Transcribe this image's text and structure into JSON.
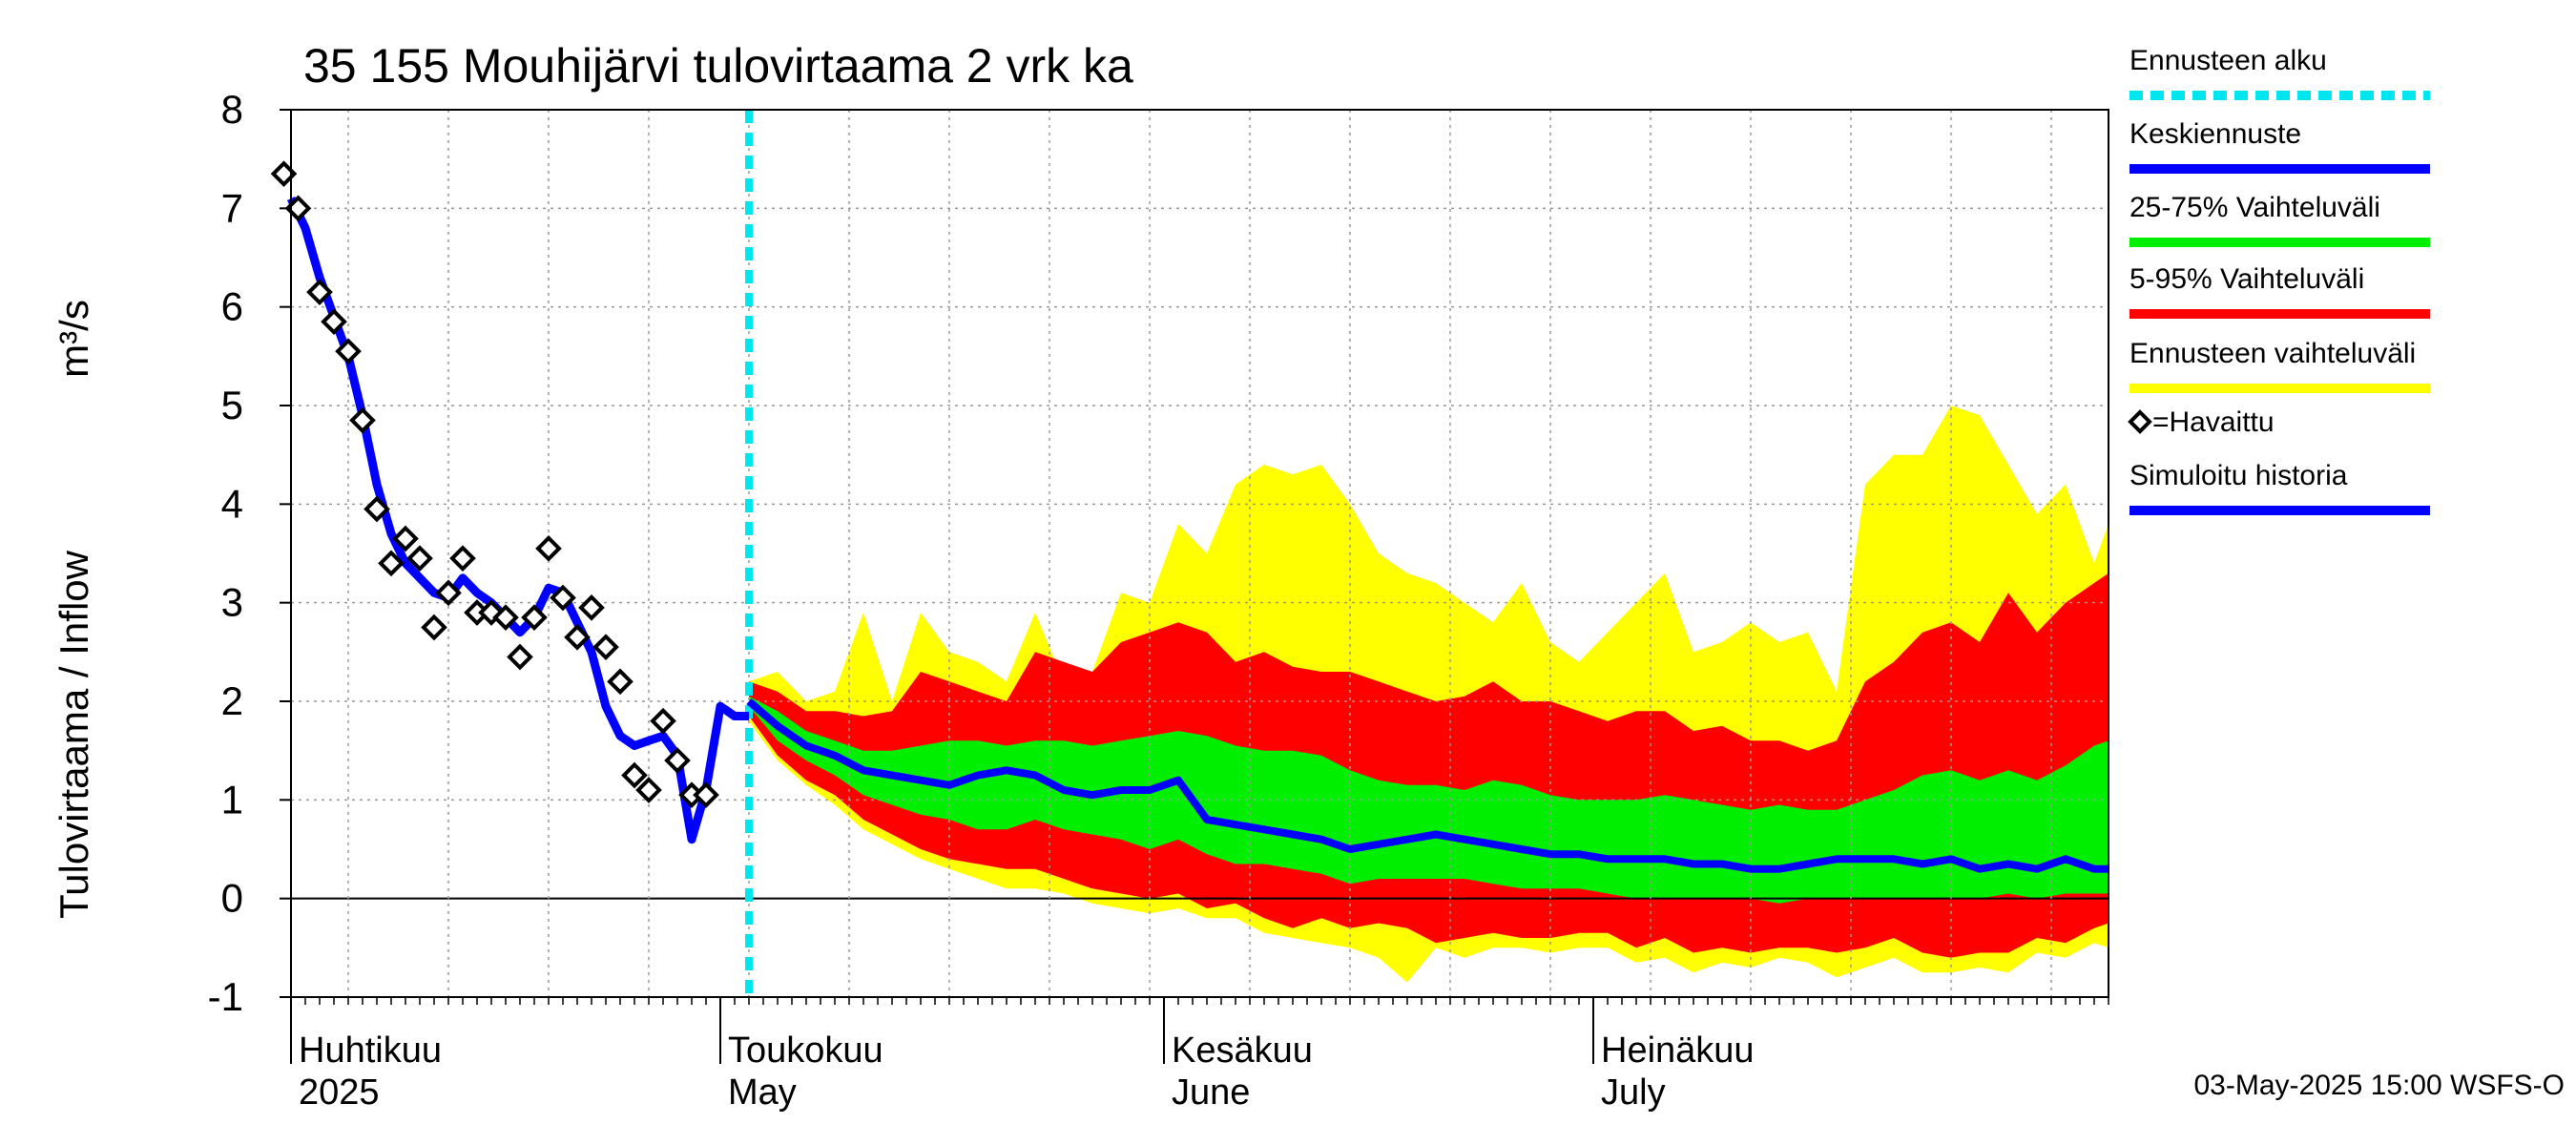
{
  "chart_data": {
    "type": "area",
    "title": "35 155 Mouhijärvi tulovirtaama 2 vrk ka",
    "ylabel_left": "Tulovirtaama / Inflow",
    "ylabel_unit": "m³/s",
    "ylim": [
      -1,
      8
    ],
    "yticks": [
      -1,
      0,
      1,
      2,
      3,
      4,
      5,
      6,
      7,
      8
    ],
    "x_start_day": 0,
    "x_end_day": 127,
    "forecast_start_day": 32,
    "month_labels": [
      {
        "day": 0,
        "fi": "Huhtikuu",
        "en": "2025"
      },
      {
        "day": 30,
        "fi": "Toukokuu",
        "en": "May"
      },
      {
        "day": 61,
        "fi": "Kesäkuu",
        "en": "June"
      },
      {
        "day": 91,
        "fi": "Heinäkuu",
        "en": "July"
      }
    ],
    "legend": [
      {
        "label": "Ennusteen alku",
        "color": "#00e5ee",
        "style": "dashed"
      },
      {
        "label": "Keskiennuste",
        "color": "#0000ff",
        "style": "line"
      },
      {
        "label": "25-75% Vaihteluväli",
        "color": "#00ee00",
        "style": "line"
      },
      {
        "label": "5-95% Vaihteluväli",
        "color": "#ff0000",
        "style": "line"
      },
      {
        "label": "Ennusteen vaihteluväli",
        "color": "#ffff00",
        "style": "line"
      },
      {
        "label": "=Havaittu",
        "color": "#000000",
        "style": "marker"
      },
      {
        "label": "Simuloitu historia",
        "color": "#0000ff",
        "style": "line"
      }
    ],
    "footer": "03-May-2025 15:00 WSFS-O",
    "colors": {
      "full_range": "#ffff00",
      "p5_95": "#ff0000",
      "p25_75": "#00ee00",
      "median": "#0000ff",
      "forecast_start": "#00e5ee",
      "grid": "#999999"
    },
    "observed": [
      [
        -0.5,
        7.35
      ],
      [
        0.5,
        7.0
      ],
      [
        2,
        6.15
      ],
      [
        3,
        5.85
      ],
      [
        4,
        5.55
      ],
      [
        5,
        4.85
      ],
      [
        6,
        3.95
      ],
      [
        7,
        3.4
      ],
      [
        8,
        3.65
      ],
      [
        9,
        3.45
      ],
      [
        10,
        2.75
      ],
      [
        11,
        3.1
      ],
      [
        12,
        3.45
      ],
      [
        13,
        2.9
      ],
      [
        14,
        2.9
      ],
      [
        15,
        2.85
      ],
      [
        16,
        2.45
      ],
      [
        17,
        2.85
      ],
      [
        18,
        3.55
      ],
      [
        19,
        3.05
      ],
      [
        20,
        2.65
      ],
      [
        21,
        2.95
      ],
      [
        22,
        2.55
      ],
      [
        23,
        2.2
      ],
      [
        24,
        1.25
      ],
      [
        25,
        1.1
      ],
      [
        26,
        1.8
      ],
      [
        27,
        1.4
      ],
      [
        28,
        1.05
      ],
      [
        29,
        1.05
      ]
    ],
    "simulated_history": [
      [
        0,
        7.1
      ],
      [
        1,
        6.8
      ],
      [
        2,
        6.3
      ],
      [
        3,
        5.9
      ],
      [
        4,
        5.5
      ],
      [
        5,
        4.9
      ],
      [
        6,
        4.2
      ],
      [
        7,
        3.7
      ],
      [
        8,
        3.4
      ],
      [
        9,
        3.25
      ],
      [
        10,
        3.1
      ],
      [
        11,
        3.05
      ],
      [
        12,
        3.25
      ],
      [
        13,
        3.1
      ],
      [
        14,
        3.0
      ],
      [
        15,
        2.85
      ],
      [
        16,
        2.7
      ],
      [
        17,
        2.85
      ],
      [
        18,
        3.15
      ],
      [
        19,
        3.1
      ],
      [
        20,
        2.8
      ],
      [
        21,
        2.5
      ],
      [
        22,
        1.95
      ],
      [
        23,
        1.65
      ],
      [
        24,
        1.55
      ],
      [
        25,
        1.6
      ],
      [
        26,
        1.65
      ],
      [
        27,
        1.45
      ],
      [
        28,
        0.6
      ],
      [
        29,
        1.1
      ],
      [
        30,
        1.95
      ],
      [
        31,
        1.85
      ],
      [
        32,
        1.85
      ]
    ],
    "forecast": {
      "days": [
        32,
        34,
        36,
        38,
        40,
        42,
        44,
        46,
        48,
        50,
        52,
        54,
        56,
        58,
        60,
        62,
        64,
        66,
        68,
        70,
        72,
        74,
        76,
        78,
        80,
        82,
        84,
        86,
        88,
        90,
        92,
        94,
        96,
        98,
        100,
        102,
        104,
        106,
        108,
        110,
        112,
        114,
        116,
        118,
        120,
        122,
        124,
        126,
        127
      ],
      "max": [
        2.2,
        2.3,
        2.0,
        2.1,
        2.9,
        2.0,
        2.9,
        2.5,
        2.4,
        2.2,
        2.9,
        2.2,
        2.3,
        3.1,
        3.0,
        3.8,
        3.5,
        4.2,
        4.4,
        4.3,
        4.4,
        4.0,
        3.5,
        3.3,
        3.2,
        3.0,
        2.8,
        3.2,
        2.6,
        2.4,
        2.7,
        3.0,
        3.3,
        2.5,
        2.6,
        2.8,
        2.6,
        2.7,
        2.1,
        4.2,
        4.5,
        4.5,
        5.0,
        4.9,
        4.4,
        3.9,
        4.2,
        3.4,
        3.8
      ],
      "p95": [
        2.2,
        2.1,
        1.9,
        1.9,
        1.85,
        1.9,
        2.3,
        2.2,
        2.1,
        2.0,
        2.5,
        2.4,
        2.3,
        2.6,
        2.7,
        2.8,
        2.7,
        2.4,
        2.5,
        2.35,
        2.3,
        2.3,
        2.2,
        2.1,
        2.0,
        2.05,
        2.2,
        2.0,
        2.0,
        1.9,
        1.8,
        1.9,
        1.9,
        1.7,
        1.75,
        1.6,
        1.6,
        1.5,
        1.6,
        2.2,
        2.4,
        2.7,
        2.8,
        2.6,
        3.1,
        2.7,
        3.0,
        3.2,
        3.3
      ],
      "p75": [
        2.05,
        1.9,
        1.7,
        1.6,
        1.5,
        1.5,
        1.55,
        1.6,
        1.6,
        1.55,
        1.6,
        1.6,
        1.55,
        1.6,
        1.65,
        1.7,
        1.65,
        1.55,
        1.5,
        1.5,
        1.45,
        1.3,
        1.2,
        1.15,
        1.15,
        1.1,
        1.2,
        1.15,
        1.05,
        1.0,
        1.0,
        1.0,
        1.05,
        1.0,
        0.95,
        0.9,
        0.95,
        0.9,
        0.9,
        1.0,
        1.1,
        1.25,
        1.3,
        1.2,
        1.3,
        1.2,
        1.35,
        1.55,
        1.6
      ],
      "p50": [
        2.0,
        1.75,
        1.55,
        1.45,
        1.3,
        1.25,
        1.2,
        1.15,
        1.25,
        1.3,
        1.25,
        1.1,
        1.05,
        1.1,
        1.1,
        1.2,
        0.8,
        0.75,
        0.7,
        0.65,
        0.6,
        0.5,
        0.55,
        0.6,
        0.65,
        0.6,
        0.55,
        0.5,
        0.45,
        0.45,
        0.4,
        0.4,
        0.4,
        0.35,
        0.35,
        0.3,
        0.3,
        0.35,
        0.4,
        0.4,
        0.4,
        0.35,
        0.4,
        0.3,
        0.35,
        0.3,
        0.4,
        0.3,
        0.3
      ],
      "p25": [
        1.95,
        1.6,
        1.4,
        1.25,
        1.05,
        0.95,
        0.85,
        0.8,
        0.7,
        0.7,
        0.8,
        0.7,
        0.65,
        0.6,
        0.5,
        0.6,
        0.45,
        0.35,
        0.35,
        0.3,
        0.25,
        0.15,
        0.2,
        0.2,
        0.2,
        0.2,
        0.15,
        0.1,
        0.1,
        0.1,
        0.05,
        0.0,
        0.0,
        0.0,
        0.0,
        0.0,
        -0.05,
        0.0,
        0.0,
        0.0,
        0.0,
        0.0,
        0.0,
        0.0,
        0.05,
        0.0,
        0.05,
        0.05,
        0.05
      ],
      "p5": [
        1.85,
        1.45,
        1.2,
        1.05,
        0.8,
        0.65,
        0.5,
        0.4,
        0.35,
        0.3,
        0.3,
        0.2,
        0.1,
        0.05,
        0.0,
        0.05,
        -0.1,
        -0.05,
        -0.2,
        -0.3,
        -0.2,
        -0.3,
        -0.25,
        -0.3,
        -0.45,
        -0.4,
        -0.35,
        -0.4,
        -0.4,
        -0.35,
        -0.35,
        -0.5,
        -0.4,
        -0.55,
        -0.5,
        -0.55,
        -0.5,
        -0.5,
        -0.55,
        -0.5,
        -0.4,
        -0.55,
        -0.6,
        -0.55,
        -0.55,
        -0.4,
        -0.45,
        -0.3,
        -0.25
      ],
      "min": [
        1.8,
        1.4,
        1.15,
        0.95,
        0.7,
        0.55,
        0.4,
        0.3,
        0.2,
        0.1,
        0.1,
        0.05,
        -0.05,
        -0.1,
        -0.15,
        -0.1,
        -0.2,
        -0.2,
        -0.35,
        -0.4,
        -0.45,
        -0.5,
        -0.6,
        -0.85,
        -0.5,
        -0.6,
        -0.5,
        -0.5,
        -0.55,
        -0.5,
        -0.5,
        -0.65,
        -0.6,
        -0.75,
        -0.65,
        -0.7,
        -0.6,
        -0.65,
        -0.8,
        -0.7,
        -0.6,
        -0.75,
        -0.75,
        -0.7,
        -0.75,
        -0.55,
        -0.6,
        -0.45,
        -0.5
      ]
    }
  }
}
